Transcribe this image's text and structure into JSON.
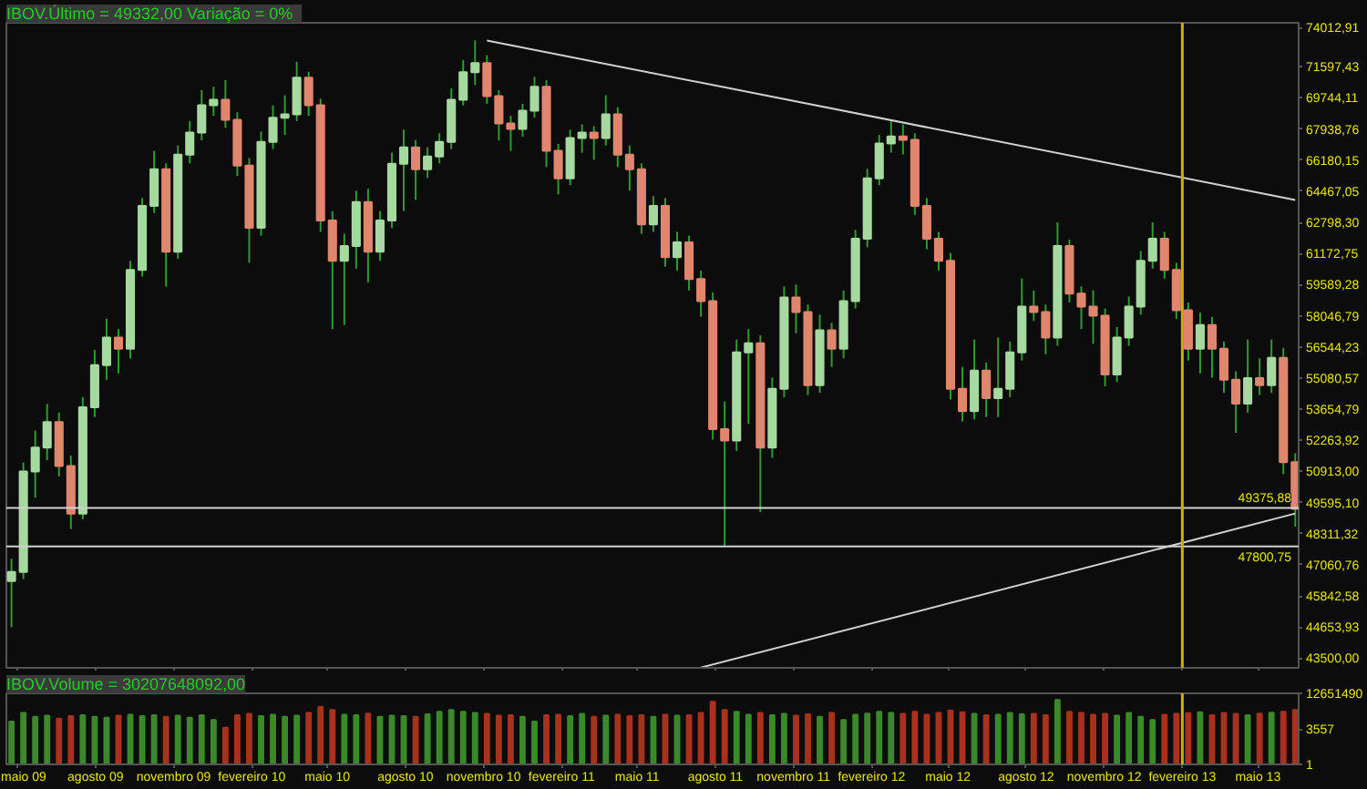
{
  "chart_data": [
    {
      "type": "candlestick",
      "title": "IBOV.Último = 49332,00   Variação = 0%",
      "x": [
        "2009-04-24",
        "2009-05-08",
        "2009-05-22",
        "2009-06-05",
        "2009-06-19",
        "2009-07-03",
        "2009-07-17",
        "2009-07-31",
        "2009-08-14",
        "2009-08-28",
        "2009-09-11",
        "2009-09-25",
        "2009-10-09",
        "2009-10-23",
        "2009-11-06",
        "2009-11-20",
        "2009-12-04",
        "2009-12-18",
        "2010-01-01",
        "2010-01-15",
        "2010-01-29",
        "2010-02-12",
        "2010-02-26",
        "2010-03-12",
        "2010-03-26",
        "2010-04-09",
        "2010-04-23",
        "2010-05-07",
        "2010-05-21",
        "2010-06-04",
        "2010-06-18",
        "2010-07-02",
        "2010-07-16",
        "2010-07-30",
        "2010-08-13",
        "2010-08-27",
        "2010-09-10",
        "2010-09-24",
        "2010-10-08",
        "2010-10-22",
        "2010-11-05",
        "2010-11-19",
        "2010-12-03",
        "2010-12-17",
        "2010-12-31",
        "2011-01-14",
        "2011-01-28",
        "2011-02-11",
        "2011-02-25",
        "2011-03-11",
        "2011-03-25",
        "2011-04-08",
        "2011-04-22",
        "2011-05-06",
        "2011-05-20",
        "2011-06-03",
        "2011-06-17",
        "2011-07-01",
        "2011-07-15",
        "2011-07-29",
        "2011-08-12",
        "2011-08-26",
        "2011-09-09",
        "2011-09-23",
        "2011-10-07",
        "2011-10-21",
        "2011-11-04",
        "2011-11-18",
        "2011-12-02",
        "2011-12-16",
        "2011-12-30",
        "2012-01-13",
        "2012-01-27",
        "2012-02-10",
        "2012-02-24",
        "2012-03-09",
        "2012-03-23",
        "2012-04-06",
        "2012-04-20",
        "2012-05-04",
        "2012-05-18",
        "2012-06-01",
        "2012-06-15",
        "2012-06-29",
        "2012-07-13",
        "2012-07-27",
        "2012-08-10",
        "2012-08-24",
        "2012-09-07",
        "2012-09-21",
        "2012-10-05",
        "2012-10-19",
        "2012-11-02",
        "2012-11-16",
        "2012-11-30",
        "2012-12-14",
        "2012-12-28",
        "2013-01-11",
        "2013-01-25",
        "2013-02-08",
        "2013-02-22",
        "2013-03-08",
        "2013-03-22",
        "2013-04-05",
        "2013-04-19",
        "2013-05-03",
        "2013-05-17",
        "2013-05-31",
        "2013-06-14"
      ],
      "ohlc": [
        [
          46420,
          47300,
          44650,
          46780
        ],
        [
          46780,
          51300,
          46500,
          50910
        ],
        [
          50910,
          52700,
          49800,
          51950
        ],
        [
          51950,
          53900,
          51400,
          53080
        ],
        [
          53080,
          53500,
          50700,
          51150
        ],
        [
          51150,
          51600,
          48500,
          49140
        ],
        [
          49140,
          54200,
          48900,
          53740
        ],
        [
          53740,
          56400,
          53300,
          55680
        ],
        [
          55680,
          57900,
          55000,
          56990
        ],
        [
          56990,
          57400,
          55300,
          56460
        ],
        [
          56460,
          60800,
          56000,
          60340
        ],
        [
          60340,
          64100,
          60000,
          63680
        ],
        [
          63680,
          66700,
          63300,
          65680
        ],
        [
          65680,
          66000,
          59500,
          61270
        ],
        [
          61270,
          67000,
          60900,
          66490
        ],
        [
          66490,
          68400,
          66000,
          67730
        ],
        [
          67730,
          70200,
          67300,
          69320
        ],
        [
          69320,
          70400,
          68700,
          69640
        ],
        [
          69640,
          70800,
          68000,
          68470
        ],
        [
          68470,
          68900,
          65300,
          65880
        ],
        [
          65880,
          66300,
          60700,
          62510
        ],
        [
          62510,
          67800,
          62100,
          67210
        ],
        [
          67210,
          69300,
          66800,
          68580
        ],
        [
          68580,
          69900,
          67600,
          68790
        ],
        [
          68790,
          71900,
          68400,
          70940
        ],
        [
          70940,
          71300,
          68700,
          69320
        ],
        [
          69320,
          69700,
          62300,
          62900
        ],
        [
          62900,
          63400,
          57400,
          60800
        ],
        [
          60800,
          62200,
          57600,
          61560
        ],
        [
          61560,
          64500,
          60400,
          63880
        ],
        [
          63880,
          64600,
          59700,
          61270
        ],
        [
          61270,
          63400,
          60800,
          62900
        ],
        [
          62900,
          66600,
          62500,
          65980
        ],
        [
          65980,
          67900,
          63400,
          66900
        ],
        [
          66900,
          67300,
          64000,
          65680
        ],
        [
          65680,
          66900,
          65200,
          66390
        ],
        [
          66390,
          67700,
          66000,
          67210
        ],
        [
          67210,
          70300,
          66800,
          69640
        ],
        [
          69640,
          72000,
          69300,
          71270
        ],
        [
          71270,
          73200,
          70500,
          71820
        ],
        [
          71820,
          72300,
          69400,
          69850
        ],
        [
          69850,
          70200,
          67300,
          68260
        ],
        [
          68260,
          68700,
          66700,
          67940
        ],
        [
          67940,
          69400,
          67500,
          69000
        ],
        [
          69000,
          71000,
          68600,
          70400
        ],
        [
          70400,
          70800,
          65800,
          66700
        ],
        [
          66700,
          67100,
          64300,
          65170
        ],
        [
          65170,
          67900,
          64800,
          67420
        ],
        [
          67420,
          68200,
          66600,
          67730
        ],
        [
          67730,
          68100,
          66200,
          67420
        ],
        [
          67420,
          69900,
          67000,
          68790
        ],
        [
          68790,
          69200,
          65800,
          66490
        ],
        [
          66490,
          67000,
          64500,
          65680
        ],
        [
          65680,
          66000,
          62200,
          62700
        ],
        [
          62700,
          64200,
          62300,
          63680
        ],
        [
          63680,
          64100,
          60500,
          60990
        ],
        [
          60990,
          62300,
          60300,
          61750
        ],
        [
          61750,
          62100,
          59300,
          59870
        ],
        [
          59870,
          60300,
          58000,
          58770
        ],
        [
          58770,
          59200,
          52300,
          52760
        ],
        [
          52760,
          54000,
          47800,
          52260
        ],
        [
          52260,
          56900,
          51800,
          56290
        ],
        [
          56290,
          57400,
          53000,
          56720
        ],
        [
          56720,
          57100,
          49200,
          51950
        ],
        [
          51950,
          55100,
          51500,
          54580
        ],
        [
          54580,
          59500,
          54200,
          58950
        ],
        [
          58950,
          59600,
          57200,
          58230
        ],
        [
          58230,
          58600,
          54300,
          54750
        ],
        [
          54750,
          58100,
          54400,
          57340
        ],
        [
          57340,
          57700,
          55600,
          56460
        ],
        [
          56460,
          59300,
          56000,
          58770
        ],
        [
          58770,
          62400,
          58400,
          61940
        ],
        [
          61940,
          65700,
          61500,
          65170
        ],
        [
          65170,
          67600,
          64800,
          67110
        ],
        [
          67110,
          68470,
          66600,
          67520
        ],
        [
          67520,
          68200,
          66500,
          67320
        ],
        [
          67320,
          67700,
          63200,
          63680
        ],
        [
          63680,
          64100,
          61400,
          61940
        ],
        [
          61940,
          62300,
          60300,
          60800
        ],
        [
          60800,
          61200,
          54100,
          54580
        ],
        [
          54580,
          55600,
          53100,
          53570
        ],
        [
          53570,
          56900,
          53200,
          55430
        ],
        [
          55430,
          55800,
          53300,
          54160
        ],
        [
          54160,
          57000,
          53300,
          54580
        ],
        [
          54580,
          56800,
          54200,
          56290
        ],
        [
          56290,
          59900,
          55900,
          58500
        ],
        [
          58500,
          59300,
          57800,
          58230
        ],
        [
          58230,
          58600,
          56200,
          56990
        ],
        [
          56990,
          62800,
          56600,
          61560
        ],
        [
          61560,
          61900,
          58700,
          59140
        ],
        [
          59140,
          59500,
          57400,
          58500
        ],
        [
          58500,
          59300,
          56700,
          58050
        ],
        [
          58050,
          58400,
          54700,
          55250
        ],
        [
          55250,
          57500,
          54900,
          56990
        ],
        [
          56990,
          59000,
          56600,
          58500
        ],
        [
          58500,
          61300,
          58100,
          60800
        ],
        [
          60800,
          62800,
          60400,
          61940
        ],
        [
          61940,
          62300,
          59900,
          60340
        ],
        [
          60340,
          60700,
          57900,
          58320
        ],
        [
          58320,
          58700,
          55900,
          56460
        ],
        [
          56460,
          58200,
          55300,
          57600
        ],
        [
          57600,
          58000,
          55100,
          56460
        ],
        [
          56460,
          56800,
          54400,
          55000
        ],
        [
          55000,
          55400,
          52600,
          53910
        ],
        [
          53910,
          56900,
          53500,
          55080
        ],
        [
          55080,
          56000,
          54300,
          54750
        ],
        [
          54750,
          56900,
          54400,
          56030
        ],
        [
          56030,
          56500,
          50800,
          51310
        ],
        [
          51310,
          51700,
          48600,
          49332
        ]
      ],
      "series": [
        {
          "type": "line",
          "color": "#d0d0d0",
          "x": [
            "2010-11-05",
            "2013-06-14"
          ],
          "values": [
            73200,
            64000
          ]
        },
        {
          "type": "line",
          "color": "#d0d0d0",
          "x": [
            "2011-07-15",
            "2013-06-14"
          ],
          "values": [
            43160,
            49140
          ]
        }
      ],
      "xlim": [
        "2009-04-18",
        "2013-06-18"
      ],
      "xticks": [
        {
          "value": "2009-05-01",
          "label": null
        },
        {
          "value": "2009-08-01",
          "label": null
        },
        {
          "value": "2009-11-01",
          "label": null
        },
        {
          "value": "2010-02-01",
          "label": null
        },
        {
          "value": "2010-05-01",
          "label": null
        },
        {
          "value": "2010-08-01",
          "label": null
        },
        {
          "value": "2010-11-01",
          "label": null
        },
        {
          "value": "2011-02-01",
          "label": null
        },
        {
          "value": "2011-05-01",
          "label": null
        },
        {
          "value": "2011-08-01",
          "label": null
        },
        {
          "value": "2011-11-01",
          "label": null
        },
        {
          "value": "2012-02-01",
          "label": null
        },
        {
          "value": "2012-05-01",
          "label": null
        },
        {
          "value": "2012-08-01",
          "label": null
        },
        {
          "value": "2012-11-01",
          "label": null
        },
        {
          "value": "2013-02-01",
          "label": null
        },
        {
          "value": "2013-05-01",
          "label": null
        }
      ],
      "log": true,
      "ylim": [
        43150,
        74300
      ],
      "yticks": [
        {
          "value": 43500,
          "label": "43500,00"
        },
        {
          "value": 44653.93,
          "label": "44653,93"
        },
        {
          "value": 45842.58,
          "label": "45842,58"
        },
        {
          "value": 47060.76,
          "label": "47060,76"
        },
        {
          "value": 48311.32,
          "label": "48311,32"
        },
        {
          "value": 49595.1,
          "label": "49595,10"
        },
        {
          "value": 50913.0,
          "label": "50913,00"
        },
        {
          "value": 52263.92,
          "label": "52263,92"
        },
        {
          "value": 53654.79,
          "label": "53654,79"
        },
        {
          "value": 55080.57,
          "label": "55080,57"
        },
        {
          "value": 56544.23,
          "label": "56544,23"
        },
        {
          "value": 58046.79,
          "label": "58046,79"
        },
        {
          "value": 59589.28,
          "label": "59589,28"
        },
        {
          "value": 61172.75,
          "label": "61172,75"
        },
        {
          "value": 62798.3,
          "label": "62798,30"
        },
        {
          "value": 64467.05,
          "label": "64467,05"
        },
        {
          "value": 66180.15,
          "label": "66180,15"
        },
        {
          "value": 67938.76,
          "label": "67938,76"
        },
        {
          "value": 69744.11,
          "label": "69744,11"
        },
        {
          "value": 71597.43,
          "label": "71597,43"
        },
        {
          "value": 74012.91,
          "label": "74012,91"
        }
      ],
      "ref_lines": [
        {
          "axis": "y",
          "value": 49375.88,
          "label": "49375,88",
          "color": "#d0d0d0"
        },
        {
          "axis": "y",
          "value": 47800.75,
          "label": "47800,75",
          "color": "#d0d0d0"
        },
        {
          "axis": "x",
          "value": "2013-02-01",
          "color": "#c8b400"
        }
      ],
      "tick_labels": "y",
      "grid": false
    },
    {
      "type": "bar",
      "title": "IBOV.Volume = 30207648092,00",
      "x": [
        "2009-04-24",
        "2009-05-08",
        "2009-05-22",
        "2009-06-05",
        "2009-06-19",
        "2009-07-03",
        "2009-07-17",
        "2009-07-31",
        "2009-08-14",
        "2009-08-28",
        "2009-09-11",
        "2009-09-25",
        "2009-10-09",
        "2009-10-23",
        "2009-11-06",
        "2009-11-20",
        "2009-12-04",
        "2009-12-18",
        "2010-01-01",
        "2010-01-15",
        "2010-01-29",
        "2010-02-12",
        "2010-02-26",
        "2010-03-12",
        "2010-03-26",
        "2010-04-09",
        "2010-04-23",
        "2010-05-07",
        "2010-05-21",
        "2010-06-04",
        "2010-06-18",
        "2010-07-02",
        "2010-07-16",
        "2010-07-30",
        "2010-08-13",
        "2010-08-27",
        "2010-09-10",
        "2010-09-24",
        "2010-10-08",
        "2010-10-22",
        "2010-11-05",
        "2010-11-19",
        "2010-12-03",
        "2010-12-17",
        "2010-12-31",
        "2011-01-14",
        "2011-01-28",
        "2011-02-11",
        "2011-02-25",
        "2011-03-11",
        "2011-03-25",
        "2011-04-08",
        "2011-04-22",
        "2011-05-06",
        "2011-05-20",
        "2011-06-03",
        "2011-06-17",
        "2011-07-01",
        "2011-07-15",
        "2011-07-29",
        "2011-08-12",
        "2011-08-26",
        "2011-09-09",
        "2011-09-23",
        "2011-10-07",
        "2011-10-21",
        "2011-11-04",
        "2011-11-18",
        "2011-12-02",
        "2011-12-16",
        "2011-12-30",
        "2012-01-13",
        "2012-01-27",
        "2012-02-10",
        "2012-02-24",
        "2012-03-09",
        "2012-03-23",
        "2012-04-06",
        "2012-04-20",
        "2012-05-04",
        "2012-05-18",
        "2012-06-01",
        "2012-06-15",
        "2012-06-29",
        "2012-07-13",
        "2012-07-27",
        "2012-08-10",
        "2012-08-24",
        "2012-09-07",
        "2012-09-21",
        "2012-10-05",
        "2012-10-19",
        "2012-11-02",
        "2012-11-16",
        "2012-11-30",
        "2012-12-14",
        "2012-12-28",
        "2013-01-11",
        "2013-01-25",
        "2013-02-08",
        "2013-02-22",
        "2013-03-08",
        "2013-03-22",
        "2013-04-05",
        "2013-04-19",
        "2013-05-03",
        "2013-05-17",
        "2013-05-31",
        "2013-06-14"
      ],
      "values": [
        20000,
        150000,
        60000,
        80000,
        40000,
        70000,
        90000,
        60000,
        50000,
        80000,
        100000,
        70000,
        90000,
        60000,
        80000,
        50000,
        90000,
        30000,
        5000,
        90000,
        120000,
        70000,
        100000,
        60000,
        80000,
        150000,
        600000,
        300000,
        100000,
        90000,
        130000,
        60000,
        80000,
        70000,
        60000,
        110000,
        200000,
        300000,
        200000,
        150000,
        120000,
        80000,
        90000,
        60000,
        20000,
        90000,
        100000,
        70000,
        120000,
        60000,
        80000,
        100000,
        70000,
        90000,
        60000,
        100000,
        80000,
        90000,
        150000,
        2000000,
        300000,
        200000,
        100000,
        150000,
        90000,
        120000,
        80000,
        110000,
        60000,
        150000,
        30000,
        100000,
        130000,
        200000,
        150000,
        120000,
        200000,
        100000,
        150000,
        250000,
        180000,
        120000,
        90000,
        100000,
        150000,
        110000,
        120000,
        90000,
        3000000,
        200000,
        150000,
        100000,
        120000,
        80000,
        150000,
        60000,
        30000,
        100000,
        120000,
        140000,
        180000,
        90000,
        150000,
        120000,
        90000,
        130000,
        160000,
        200000,
        300000
      ],
      "colors": [
        "#3a8a2a",
        "#3a8a2a",
        "#3a8a2a",
        "#3a8a2a",
        "#a8321e",
        "#a8321e",
        "#3a8a2a",
        "#3a8a2a",
        "#3a8a2a",
        "#a8321e",
        "#3a8a2a",
        "#3a8a2a",
        "#3a8a2a",
        "#a8321e",
        "#3a8a2a",
        "#3a8a2a",
        "#3a8a2a",
        "#3a8a2a",
        "#a8321e",
        "#a8321e",
        "#a8321e",
        "#3a8a2a",
        "#3a8a2a",
        "#3a8a2a",
        "#3a8a2a",
        "#a8321e",
        "#a8321e",
        "#a8321e",
        "#3a8a2a",
        "#3a8a2a",
        "#a8321e",
        "#3a8a2a",
        "#3a8a2a",
        "#3a8a2a",
        "#a8321e",
        "#3a8a2a",
        "#3a8a2a",
        "#3a8a2a",
        "#3a8a2a",
        "#3a8a2a",
        "#a8321e",
        "#a8321e",
        "#a8321e",
        "#3a8a2a",
        "#3a8a2a",
        "#a8321e",
        "#a8321e",
        "#3a8a2a",
        "#3a8a2a",
        "#a8321e",
        "#3a8a2a",
        "#a8321e",
        "#a8321e",
        "#a8321e",
        "#3a8a2a",
        "#a8321e",
        "#3a8a2a",
        "#a8321e",
        "#a8321e",
        "#a8321e",
        "#a8321e",
        "#3a8a2a",
        "#3a8a2a",
        "#a8321e",
        "#3a8a2a",
        "#3a8a2a",
        "#a8321e",
        "#a8321e",
        "#3a8a2a",
        "#a8321e",
        "#3a8a2a",
        "#3a8a2a",
        "#3a8a2a",
        "#3a8a2a",
        "#3a8a2a",
        "#a8321e",
        "#a8321e",
        "#a8321e",
        "#a8321e",
        "#a8321e",
        "#a8321e",
        "#3a8a2a",
        "#a8321e",
        "#3a8a2a",
        "#3a8a2a",
        "#3a8a2a",
        "#a8321e",
        "#a8321e",
        "#3a8a2a",
        "#a8321e",
        "#a8321e",
        "#a8321e",
        "#a8321e",
        "#3a8a2a",
        "#3a8a2a",
        "#3a8a2a",
        "#3a8a2a",
        "#a8321e",
        "#a8321e",
        "#a8321e",
        "#3a8a2a",
        "#a8321e",
        "#a8321e",
        "#a8321e",
        "#3a8a2a",
        "#a8321e",
        "#3a8a2a",
        "#a8321e",
        "#a8321e"
      ],
      "xlim": [
        "2009-04-18",
        "2013-06-18"
      ],
      "xticks": [
        {
          "value": "2009-05-01",
          "label": "maio 09"
        },
        {
          "value": "2009-08-01",
          "label": "agosto 09"
        },
        {
          "value": "2009-11-01",
          "label": "novembro 09"
        },
        {
          "value": "2010-02-01",
          "label": "fevereiro 10"
        },
        {
          "value": "2010-05-01",
          "label": "maio 10"
        },
        {
          "value": "2010-08-01",
          "label": "agosto 10"
        },
        {
          "value": "2010-11-01",
          "label": "novembro 10"
        },
        {
          "value": "2011-02-01",
          "label": "fevereiro 11"
        },
        {
          "value": "2011-05-01",
          "label": "maio 11"
        },
        {
          "value": "2011-08-01",
          "label": "agosto 11"
        },
        {
          "value": "2011-11-01",
          "label": "novembro 11"
        },
        {
          "value": "2012-02-01",
          "label": "fevereiro 12"
        },
        {
          "value": "2012-05-01",
          "label": "maio 12"
        },
        {
          "value": "2012-08-01",
          "label": "agosto 12"
        },
        {
          "value": "2012-11-01",
          "label": "novembro 12"
        },
        {
          "value": "2013-02-01",
          "label": "fevereiro 13"
        },
        {
          "value": "2013-05-01",
          "label": "maio 13"
        }
      ],
      "log": true,
      "ylim": [
        1,
        14000000
      ],
      "yticks": [
        1,
        3557,
        12651490
      ],
      "ref_lines": [
        {
          "axis": "x",
          "value": "2013-02-01",
          "color": "#c8b400"
        }
      ],
      "grid": false
    }
  ]
}
